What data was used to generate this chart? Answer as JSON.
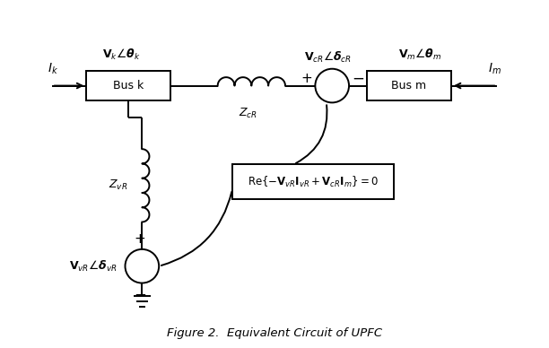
{
  "title": "Figure 2.  Equivalent Circuit of UPFC",
  "background_color": "#ffffff",
  "line_color": "#000000",
  "text_color": "#000000",
  "figsize": [
    6.12,
    3.88
  ],
  "dpi": 100,
  "labels": {
    "Vk": "$\\mathbf{V}_k\\angle\\boldsymbol{\\theta}_k$",
    "Vm": "$\\mathbf{V}_m\\angle\\boldsymbol{\\theta}_m$",
    "VcR": "$\\mathbf{V}_{cR}\\angle\\boldsymbol{\\delta}_{cR}$",
    "VvR": "$\\mathbf{V}_{vR}\\angle\\boldsymbol{\\delta}_{vR}$",
    "ZcR": "$Z_{cR}$",
    "ZvR": "$Z_{vR}$",
    "Ik": "$I_k$",
    "Im": "$I_m$",
    "Bus_k": "Bus k",
    "Bus_m": "Bus m",
    "equation": "$\\mathrm{Re}\\left\\{-\\mathbf{V}_{vR}\\mathbf{I}_{vR}+\\mathbf{V}_{cR}\\mathbf{I}_m\\right\\}=0$"
  }
}
